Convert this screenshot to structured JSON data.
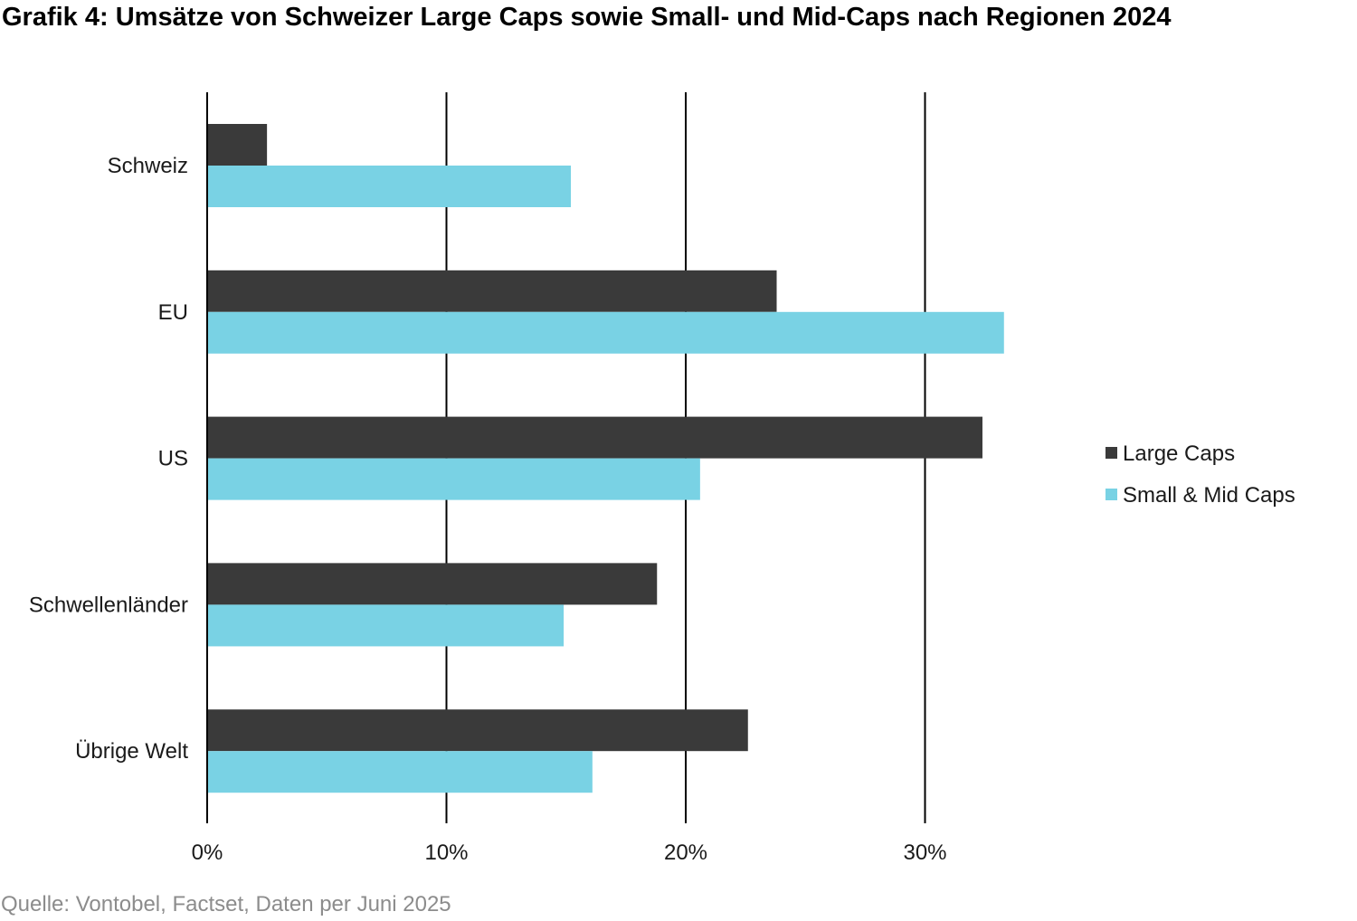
{
  "title": "Grafik 4: Umsätze von Schweizer Large Caps sowie Small- und Mid-Caps nach Regionen 2024",
  "source": "Quelle: Vontobel, Factset, Daten per Juni 2025",
  "chart_data": {
    "type": "bar",
    "orientation": "horizontal",
    "title": "Grafik 4: Umsätze von Schweizer Large Caps sowie Small- und Mid-Caps nach Regionen 2024",
    "categories": [
      "Schweiz",
      "EU",
      "US",
      "Schwellenländer",
      "Übrige Welt"
    ],
    "series": [
      {
        "name": "Large Caps",
        "color": "#3a3a3a",
        "values": [
          2.5,
          23.8,
          32.4,
          18.8,
          22.6
        ]
      },
      {
        "name": "Small & Mid Caps",
        "color": "#79d2e4",
        "values": [
          15.2,
          33.3,
          20.6,
          14.9,
          16.1
        ]
      }
    ],
    "xticks": [
      "0%",
      "10%",
      "20%",
      "30%"
    ],
    "xtick_values": [
      0,
      10,
      20,
      30
    ],
    "xlim": [
      0,
      34
    ],
    "unit": "%",
    "grid": "vertical",
    "legend": "right"
  }
}
